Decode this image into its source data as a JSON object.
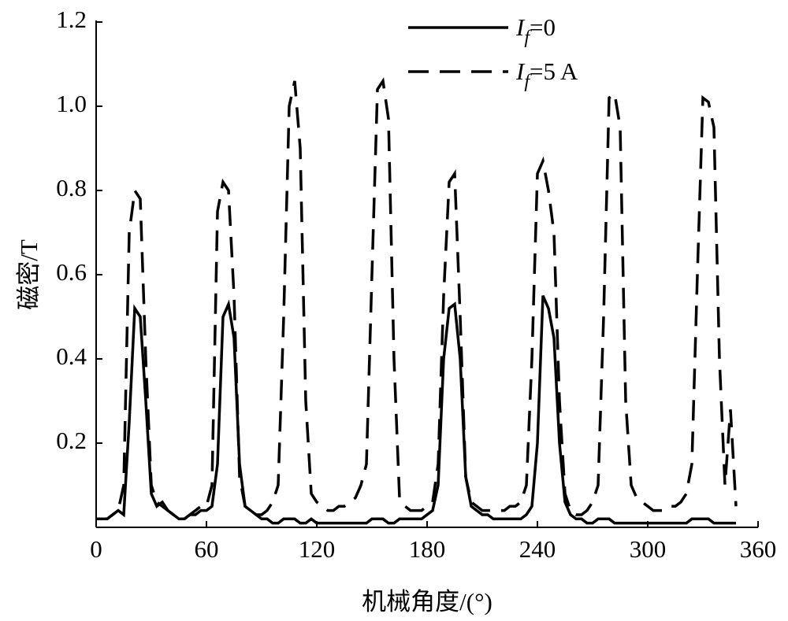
{
  "chart_data": {
    "type": "line",
    "xlabel": "机械角度/(°)",
    "ylabel": "磁密/T",
    "x": [
      0,
      3,
      6,
      9,
      12,
      15,
      18,
      21,
      24,
      27,
      30,
      33,
      36,
      39,
      42,
      45,
      48,
      51,
      54,
      57,
      60,
      63,
      66,
      69,
      72,
      75,
      78,
      81,
      84,
      87,
      90,
      93,
      96,
      99,
      102,
      105,
      108,
      111,
      114,
      117,
      120,
      123,
      126,
      129,
      132,
      135,
      138,
      141,
      144,
      147,
      150,
      153,
      156,
      159,
      162,
      165,
      168,
      171,
      174,
      177,
      180,
      183,
      186,
      189,
      192,
      195,
      198,
      201,
      204,
      207,
      210,
      213,
      216,
      219,
      222,
      225,
      228,
      231,
      234,
      237,
      240,
      243,
      246,
      249,
      252,
      255,
      258,
      261,
      264,
      267,
      270,
      273,
      276,
      279,
      282,
      285,
      288,
      291,
      294,
      297,
      300,
      303,
      306,
      309,
      312,
      315,
      318,
      321,
      324,
      327,
      330,
      333,
      336,
      339,
      342,
      345,
      348
    ],
    "series": [
      {
        "name": "If=0",
        "color": "#000000",
        "dash": false,
        "values": [
          0.02,
          0.02,
          0.02,
          0.03,
          0.04,
          0.03,
          0.25,
          0.52,
          0.5,
          0.3,
          0.08,
          0.05,
          0.06,
          0.04,
          0.03,
          0.02,
          0.02,
          0.03,
          0.03,
          0.04,
          0.04,
          0.05,
          0.15,
          0.5,
          0.53,
          0.45,
          0.15,
          0.05,
          0.04,
          0.03,
          0.02,
          0.02,
          0.01,
          0.01,
          0.02,
          0.02,
          0.02,
          0.01,
          0.01,
          0.02,
          0.01,
          0.01,
          0.01,
          0.01,
          0.01,
          0.01,
          0.01,
          0.01,
          0.01,
          0.01,
          0.02,
          0.02,
          0.02,
          0.01,
          0.01,
          0.02,
          0.02,
          0.02,
          0.02,
          0.02,
          0.03,
          0.04,
          0.1,
          0.4,
          0.52,
          0.53,
          0.4,
          0.12,
          0.05,
          0.04,
          0.03,
          0.03,
          0.02,
          0.02,
          0.02,
          0.02,
          0.02,
          0.02,
          0.03,
          0.05,
          0.2,
          0.55,
          0.52,
          0.45,
          0.2,
          0.06,
          0.03,
          0.02,
          0.02,
          0.01,
          0.01,
          0.02,
          0.02,
          0.02,
          0.01,
          0.01,
          0.01,
          0.01,
          0.01,
          0.01,
          0.01,
          0.01,
          0.01,
          0.01,
          0.01,
          0.01,
          0.01,
          0.01,
          0.02,
          0.02,
          0.02,
          0.02,
          0.01,
          0.01,
          0.01,
          0.01,
          0.01
        ]
      },
      {
        "name": "If=5 A",
        "color": "#000000",
        "dash": true,
        "values": [
          0.02,
          0.02,
          0.02,
          0.03,
          0.04,
          0.1,
          0.7,
          0.8,
          0.78,
          0.4,
          0.1,
          0.06,
          0.05,
          0.04,
          0.03,
          0.02,
          0.02,
          0.03,
          0.04,
          0.05,
          0.05,
          0.1,
          0.75,
          0.82,
          0.8,
          0.55,
          0.12,
          0.05,
          0.04,
          0.03,
          0.03,
          0.04,
          0.06,
          0.1,
          0.5,
          1.0,
          1.06,
          0.9,
          0.3,
          0.08,
          0.06,
          0.05,
          0.04,
          0.04,
          0.05,
          0.05,
          0.06,
          0.07,
          0.1,
          0.15,
          0.6,
          1.04,
          1.06,
          0.97,
          0.4,
          0.07,
          0.05,
          0.04,
          0.04,
          0.04,
          0.05,
          0.06,
          0.15,
          0.55,
          0.82,
          0.84,
          0.5,
          0.12,
          0.06,
          0.05,
          0.04,
          0.04,
          0.04,
          0.04,
          0.04,
          0.05,
          0.05,
          0.06,
          0.1,
          0.4,
          0.84,
          0.87,
          0.8,
          0.7,
          0.3,
          0.08,
          0.04,
          0.03,
          0.03,
          0.04,
          0.06,
          0.1,
          0.5,
          1.02,
          1.03,
          0.95,
          0.3,
          0.1,
          0.07,
          0.06,
          0.05,
          0.04,
          0.04,
          0.04,
          0.05,
          0.05,
          0.06,
          0.08,
          0.15,
          0.6,
          1.02,
          1.01,
          0.95,
          0.4,
          0.1,
          0.28,
          0.05
        ]
      }
    ],
    "xlim": [
      0,
      360
    ],
    "xticks": [
      0,
      60,
      120,
      180,
      240,
      300,
      360
    ],
    "ylim": [
      0,
      1.2
    ],
    "yticks": [
      0.2,
      0.4,
      0.6,
      0.8,
      {
        "value": 1,
        "label": "1.0"
      },
      1.2
    ],
    "legend": "top-right"
  }
}
